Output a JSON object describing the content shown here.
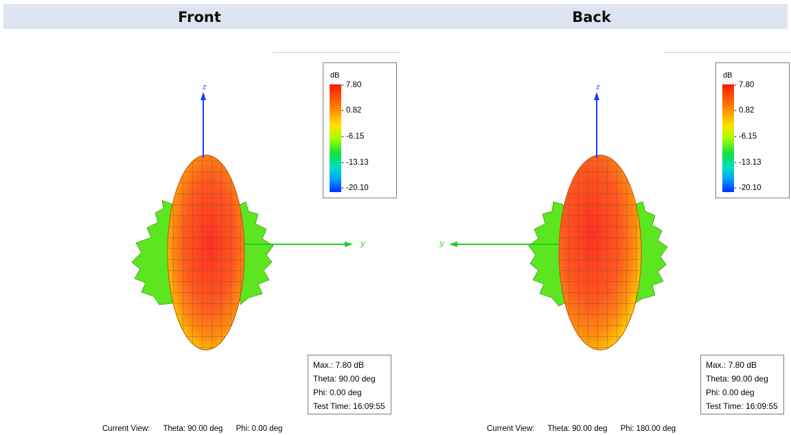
{
  "header": {
    "front_title": "Front",
    "back_title": "Back"
  },
  "colors": {
    "axis_z": "#1a3cff",
    "axis_y": "#22cc22",
    "main_lobe": "#ff5a1e",
    "side_lobe": "#5ce620",
    "header_bg": "#dde5f1"
  },
  "front": {
    "legend": {
      "unit": "dB",
      "ticks": [
        "- 7.80",
        "- 0.82",
        "- -6.15",
        "- -13.13",
        "- -20.10"
      ]
    },
    "axes": {
      "z_label": "z",
      "y_label": "y"
    },
    "info": {
      "max": "Max.: 7.80 dB",
      "theta": "Theta: 90.00 deg",
      "phi": "Phi: 0.00 deg",
      "test_time": "Test Time: 16:09:55"
    },
    "current_view": {
      "label": "Current View:",
      "theta": "Theta: 90.00 deg",
      "phi": "Phi: 0.00 deg"
    }
  },
  "back": {
    "legend": {
      "unit": "dB",
      "ticks": [
        "- 7.80",
        "- 0.82",
        "- -6.15",
        "- -13.13",
        "- -20.10"
      ]
    },
    "axes": {
      "z_label": "z",
      "y_label": "y"
    },
    "info": {
      "max": "Max.: 7.80 dB",
      "theta": "Theta: 90.00 deg",
      "phi": "Phi: 0.00 deg",
      "test_time": "Test Time: 16:09:55"
    },
    "current_view": {
      "label": "Current View:",
      "theta": "Theta: 90.00 deg",
      "phi": "Phi: 180.00 deg"
    }
  }
}
